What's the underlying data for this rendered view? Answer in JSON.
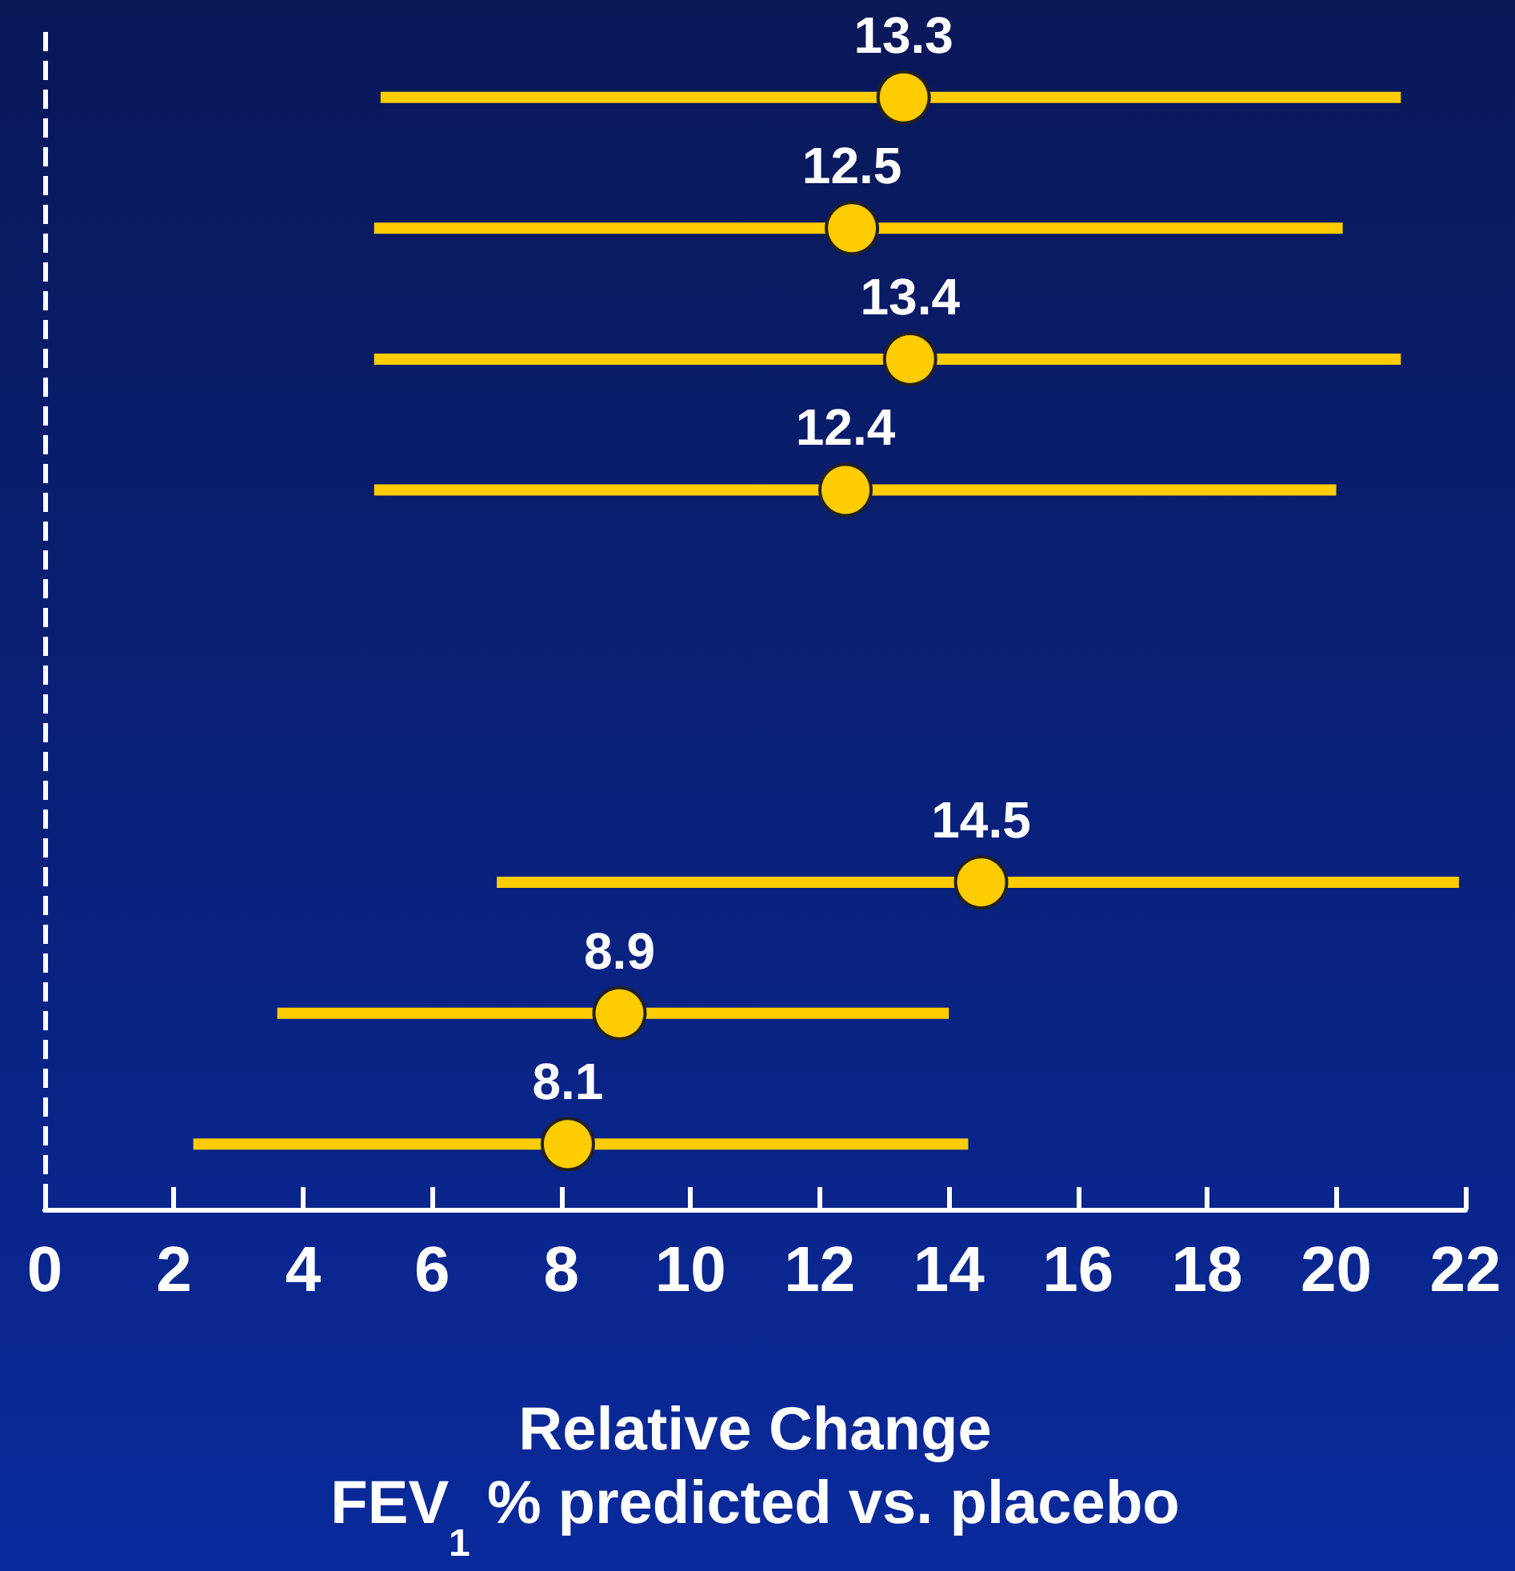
{
  "chart_data": {
    "type": "scatter",
    "orientation": "horizontal",
    "marker": "circle",
    "categories": [
      null,
      null,
      null,
      null,
      null,
      null,
      null,
      null,
      null
    ],
    "values": [
      13.3,
      12.5,
      13.4,
      12.4,
      null,
      null,
      14.5,
      8.9,
      8.1
    ],
    "errors": [
      [
        5.2,
        21.0
      ],
      [
        5.1,
        20.1
      ],
      [
        5.1,
        21.0
      ],
      [
        5.1,
        20.0
      ],
      null,
      null,
      [
        7.0,
        21.9
      ],
      [
        3.6,
        14.0
      ],
      [
        2.3,
        14.3
      ]
    ],
    "color": "#ffcc00",
    "data_labels": true,
    "xlim": [
      0,
      22
    ],
    "xticks": [
      0,
      2,
      4,
      6,
      8,
      10,
      12,
      14,
      16,
      18,
      20,
      22
    ],
    "xlabel": "Relative Change\nFEV$_{1}$ % predicted vs. placebo",
    "ref_lines": [
      {
        "axis": "x",
        "value": 0,
        "line_style": "dashed",
        "color": "#ffffff"
      }
    ]
  }
}
